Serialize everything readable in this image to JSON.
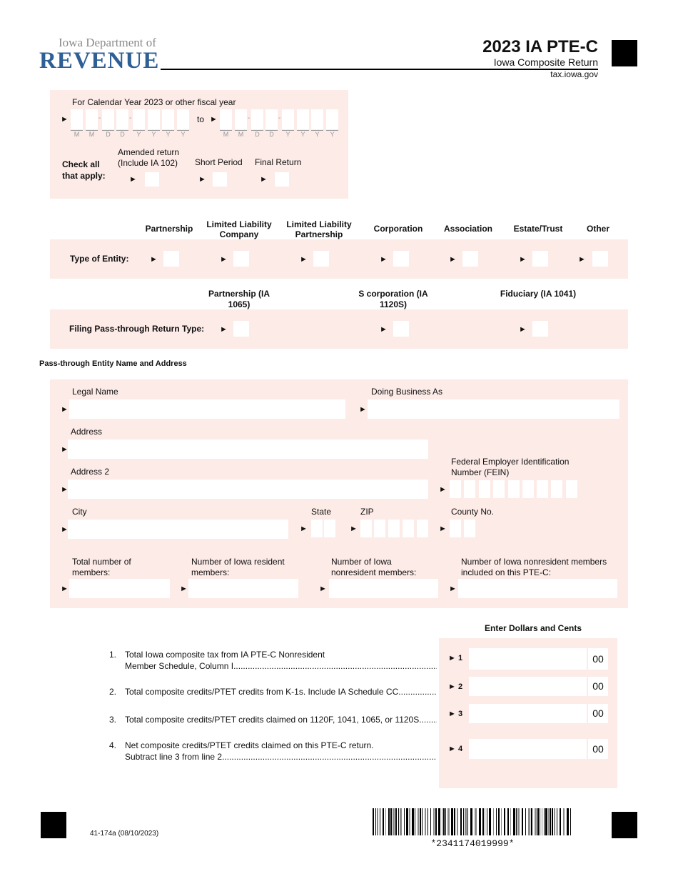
{
  "header": {
    "logo_top": "Iowa Department of",
    "logo_main": "REVENUE",
    "form_title": "2023 IA PTE-C",
    "form_subtitle": "Iowa Composite Return",
    "website": "tax.iowa.gov",
    "brand_color": "#2e5f95",
    "pink": "#fcebe7"
  },
  "period": {
    "label": "For Calendar Year 2023 or other fiscal year",
    "to": "to",
    "digit_labels": [
      "M",
      "M",
      "D",
      "D",
      "Y",
      "Y",
      "Y",
      "Y"
    ],
    "check_label": "Check all that apply:",
    "checks": [
      {
        "label": "Amended return (Include IA 102)"
      },
      {
        "label": "Short Period"
      },
      {
        "label": "Final Return"
      }
    ]
  },
  "entity": {
    "headers": [
      "Partnership",
      "Limited Liability Company",
      "Limited Liability Partnership",
      "Corporation",
      "Association",
      "Estate/Trust",
      "Other"
    ],
    "row_label": "Type of Entity:"
  },
  "filing": {
    "headers": [
      "Partnership (IA 1065)",
      "S corporation (IA 1120S)",
      "Fiduciary (IA 1041)"
    ],
    "row_label": "Filing Pass-through Return Type:"
  },
  "address": {
    "section_title": "Pass-through Entity Name and Address",
    "legal_name": "Legal Name",
    "dba": "Doing Business As",
    "address": "Address",
    "address2": "Address 2",
    "fein": "Federal Employer Identification Number (FEIN)",
    "city": "City",
    "state": "State",
    "zip": "ZIP",
    "county": "County No.",
    "total_members": "Total number of members:",
    "resident_members": "Number of Iowa resident members:",
    "nonresident_members": "Number of Iowa nonresident members:",
    "nonresident_included": "Number of Iowa nonresident members included on this PTE-C:"
  },
  "lines": {
    "header": "Enter Dollars and Cents",
    "items": [
      {
        "num": "1.",
        "text1": "Total Iowa composite tax from IA PTE-C Nonresident",
        "text2": "Member Schedule, Column I",
        "box": "1",
        "cents": "00"
      },
      {
        "num": "2.",
        "text1": "Total composite credits/PTET credits from K-1s. Include IA Schedule CC",
        "text2": "",
        "box": "2",
        "cents": "00"
      },
      {
        "num": "3.",
        "text1": "Total composite credits/PTET credits claimed on 1120F, 1041, 1065, or 1120S",
        "text2": "",
        "box": "3",
        "cents": "00"
      },
      {
        "num": "4.",
        "text1": "Net composite credits/PTET credits claimed on this PTE-C return.",
        "text2": "Subtract line 3 from line 2",
        "box": "4",
        "cents": "00"
      }
    ]
  },
  "footer": {
    "form_id": "41-174a (08/10/2023)",
    "barcode": "*2341174019999*"
  }
}
